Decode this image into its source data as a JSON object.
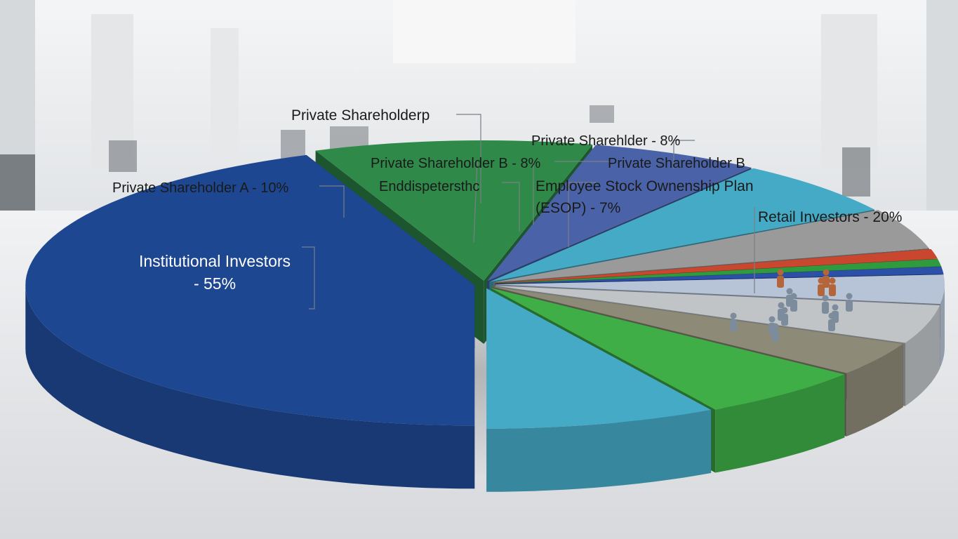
{
  "chart_data": {
    "type": "pie",
    "style": "3d-exploded",
    "slices": [
      {
        "label": "Institutional Investors - 55%",
        "value": 55,
        "color": "#1e4791"
      },
      {
        "label": "Private Shareholder A - 10%",
        "value": 10,
        "color": "#2f8a4a"
      },
      {
        "label": "Private Shareholder B - 8%",
        "value": 8,
        "color": "#4a63a8"
      },
      {
        "label": "Employee Stock Ownenship Plan (ESOP) - 7%",
        "value": 7,
        "color": "#45aac5"
      },
      {
        "label": "Retail Investors - 20%",
        "value": 20,
        "color": "#9a9a9a"
      }
    ],
    "labels": [
      {
        "id": "inst",
        "lines": [
          "Institutional Investors",
          "- 55%"
        ],
        "color": "#ffffff"
      },
      {
        "id": "psA",
        "lines": [
          "Private Shareholder A - 10%"
        ],
        "color": "#1a1a1a"
      },
      {
        "id": "psP",
        "lines": [
          "Private Shareholderp"
        ],
        "color": "#1a1a1a"
      },
      {
        "id": "psB8",
        "lines": [
          "Private Shareholder B - 8%"
        ],
        "color": "#1a1a1a"
      },
      {
        "id": "ps8",
        "lines": [
          "Private Sharehlder - 8%"
        ],
        "color": "#1a1a1a"
      },
      {
        "id": "psB",
        "lines": [
          "Private Shareholder B"
        ],
        "color": "#1a1a1a"
      },
      {
        "id": "endd",
        "lines": [
          "Enddispetersthc"
        ],
        "color": "#1a1a1a"
      },
      {
        "id": "esop",
        "lines": [
          "Employee Stock Ownenship   Plan",
          "(ESOP) - 7%"
        ],
        "color": "#1a1a1a"
      },
      {
        "id": "retail",
        "lines": [
          "Retail Investors - 20%"
        ],
        "color": "#1a1a1a"
      }
    ],
    "legend": "none"
  }
}
